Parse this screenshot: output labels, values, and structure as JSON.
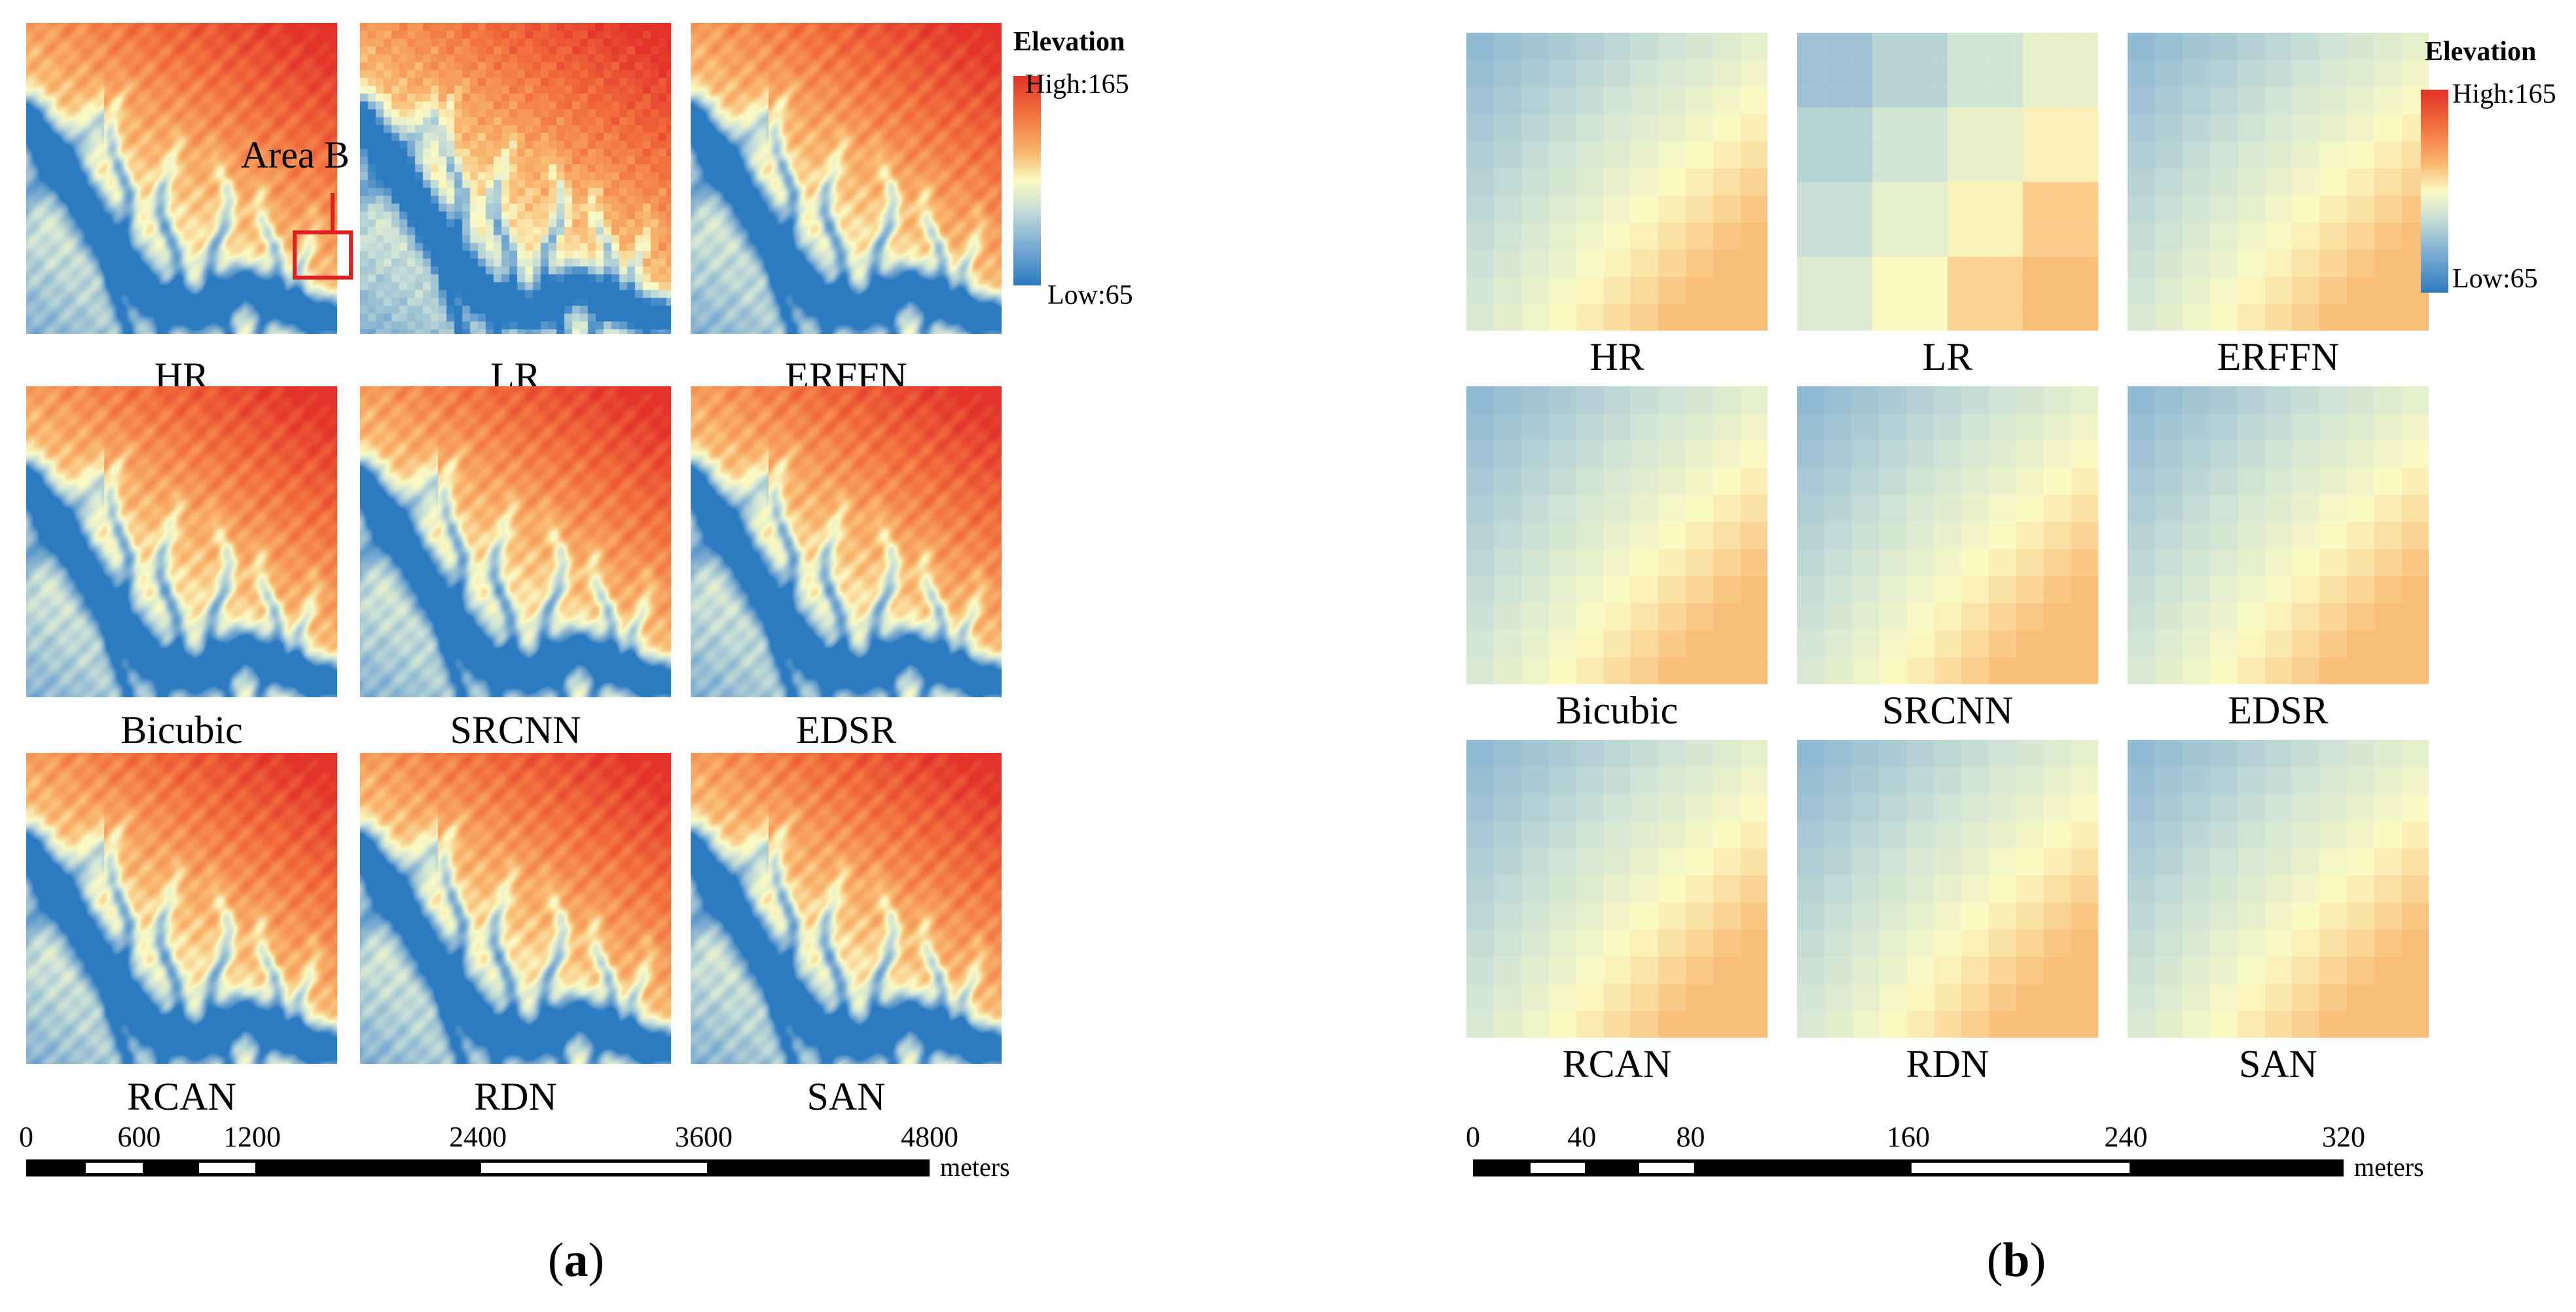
{
  "legend": {
    "title": "Elevation",
    "high": "High:165",
    "low": "Low:65"
  },
  "annotation": {
    "area_label": "Area B"
  },
  "panels": [
    {
      "id": "a",
      "caption_letter": "a",
      "tiles": [
        "HR",
        "LR",
        "ERFFN",
        "Bicubic",
        "SRCNN",
        "EDSR",
        "RCAN",
        "RDN",
        "SAN"
      ],
      "scale": {
        "ticks": [
          "0",
          "600",
          "1200",
          "2400",
          "3600",
          "4800"
        ],
        "values": [
          0,
          600,
          1200,
          2400,
          3600,
          4800
        ],
        "unit": "meters"
      }
    },
    {
      "id": "b",
      "caption_letter": "b",
      "tiles": [
        "HR",
        "LR",
        "ERFFN",
        "Bicubic",
        "SRCNN",
        "EDSR",
        "RCAN",
        "RDN",
        "SAN"
      ],
      "scale": {
        "ticks": [
          "0",
          "40",
          "80",
          "160",
          "240",
          "320"
        ],
        "values": [
          0,
          40,
          80,
          160,
          240,
          320
        ],
        "unit": "meters"
      }
    }
  ],
  "colors": {
    "high": "#e2322a",
    "mid": "#fbfac3",
    "low": "#2c7bc1",
    "annotation": "#e02020"
  }
}
